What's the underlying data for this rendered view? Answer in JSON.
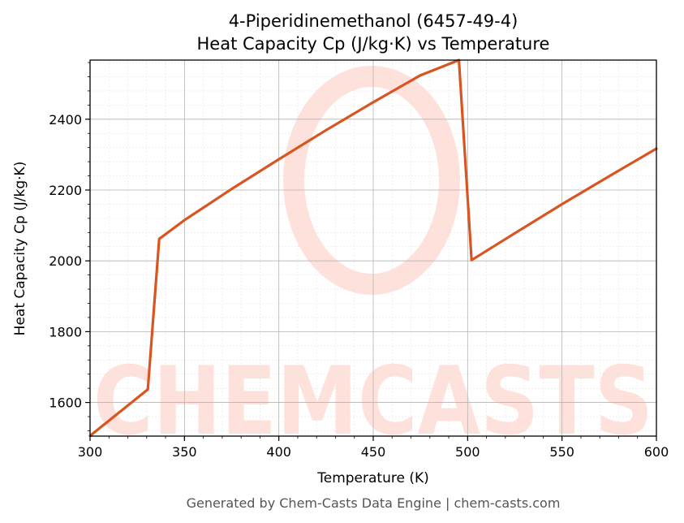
{
  "chart_data": {
    "type": "line",
    "title": "4-Piperidinemethanol (6457-49-4)",
    "subtitle": "Heat Capacity Cp (J/kg·K) vs Temperature",
    "xlabel": "Temperature (K)",
    "ylabel": "Heat Capacity Cp (J/kg·K)",
    "xlim": [
      300,
      600
    ],
    "ylim": [
      1505,
      2567
    ],
    "x_ticks": [
      300,
      350,
      400,
      450,
      500,
      550,
      600
    ],
    "x_tick_labels": [
      "300",
      "350",
      "400",
      "450",
      "500",
      "550",
      "600"
    ],
    "y_ticks": [
      1600,
      1800,
      2000,
      2200,
      2400
    ],
    "y_tick_labels": [
      "1600",
      "1800",
      "2000",
      "2200",
      "2400"
    ],
    "grid": true,
    "legend": "none",
    "series": [
      {
        "color": "#d9541e",
        "x": [
          300,
          330.6,
          336.6,
          350,
          375,
          400,
          425,
          450,
          475,
          495.4,
          502.1,
          525,
          550,
          575,
          600
        ],
        "y": [
          1506,
          1637,
          2062,
          2115,
          2203,
          2287,
          2369,
          2448,
          2524,
          2567,
          2002,
          2078,
          2160,
          2239,
          2317
        ]
      }
    ]
  },
  "watermark": {
    "text": "CHEMCASTS",
    "color": "#ffe1dc"
  },
  "footer": {
    "text": "Generated by Chem-Casts Data Engine | chem-casts.com"
  }
}
